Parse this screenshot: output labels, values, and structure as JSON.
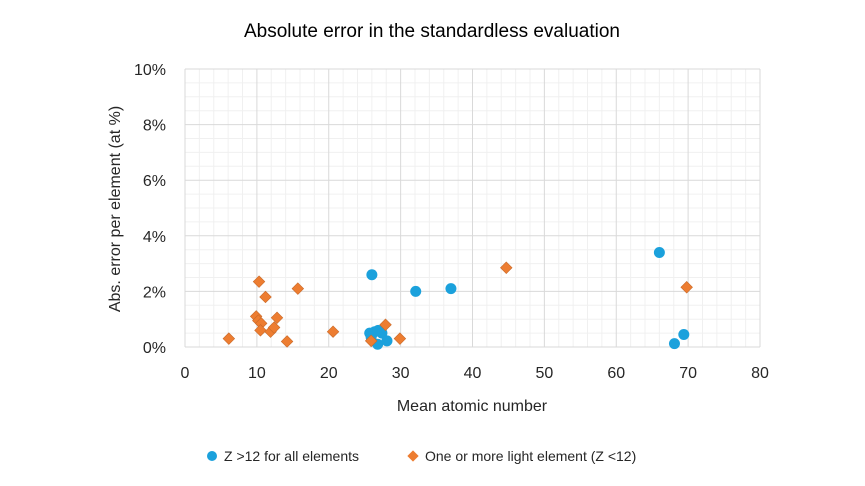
{
  "chart_data": {
    "type": "scatter",
    "title": "Absolute error in the standardless evaluation",
    "xlabel": "Mean atomic number",
    "ylabel": "Abs. error per element (at %)",
    "xlim": [
      0,
      80
    ],
    "ylim": [
      0,
      10
    ],
    "x_ticks": [
      "0",
      "10",
      "20",
      "30",
      "40",
      "50",
      "60",
      "70",
      "80"
    ],
    "y_ticks": [
      "0%",
      "2%",
      "4%",
      "6%",
      "8%",
      "10%"
    ],
    "grid": true,
    "legend_position": "bottom",
    "series": [
      {
        "name": "Z >12 for all elements",
        "color": "#1ba1dc",
        "marker": "circle",
        "points": [
          [
            26.0,
            2.6
          ],
          [
            32.1,
            2.0
          ],
          [
            37.0,
            2.1
          ],
          [
            66.0,
            3.4
          ],
          [
            69.4,
            0.45
          ],
          [
            68.1,
            0.12
          ],
          [
            25.7,
            0.5
          ],
          [
            26.4,
            0.55
          ],
          [
            26.9,
            0.6
          ],
          [
            27.4,
            0.5
          ],
          [
            26.8,
            0.1
          ],
          [
            28.1,
            0.22
          ],
          [
            25.9,
            0.35
          ]
        ]
      },
      {
        "name": "One or more light element (Z <12)",
        "color": "#ed7d31",
        "marker": "diamond",
        "points": [
          [
            6.1,
            0.3
          ],
          [
            10.3,
            2.35
          ],
          [
            11.2,
            1.8
          ],
          [
            15.7,
            2.1
          ],
          [
            9.9,
            1.1
          ],
          [
            10.2,
            0.95
          ],
          [
            10.6,
            0.85
          ],
          [
            10.5,
            0.6
          ],
          [
            11.9,
            0.55
          ],
          [
            12.4,
            0.7
          ],
          [
            12.8,
            1.05
          ],
          [
            14.2,
            0.2
          ],
          [
            20.6,
            0.55
          ],
          [
            25.9,
            0.22
          ],
          [
            27.9,
            0.8
          ],
          [
            29.9,
            0.3
          ],
          [
            44.7,
            2.85
          ],
          [
            69.8,
            2.15
          ]
        ]
      }
    ]
  }
}
